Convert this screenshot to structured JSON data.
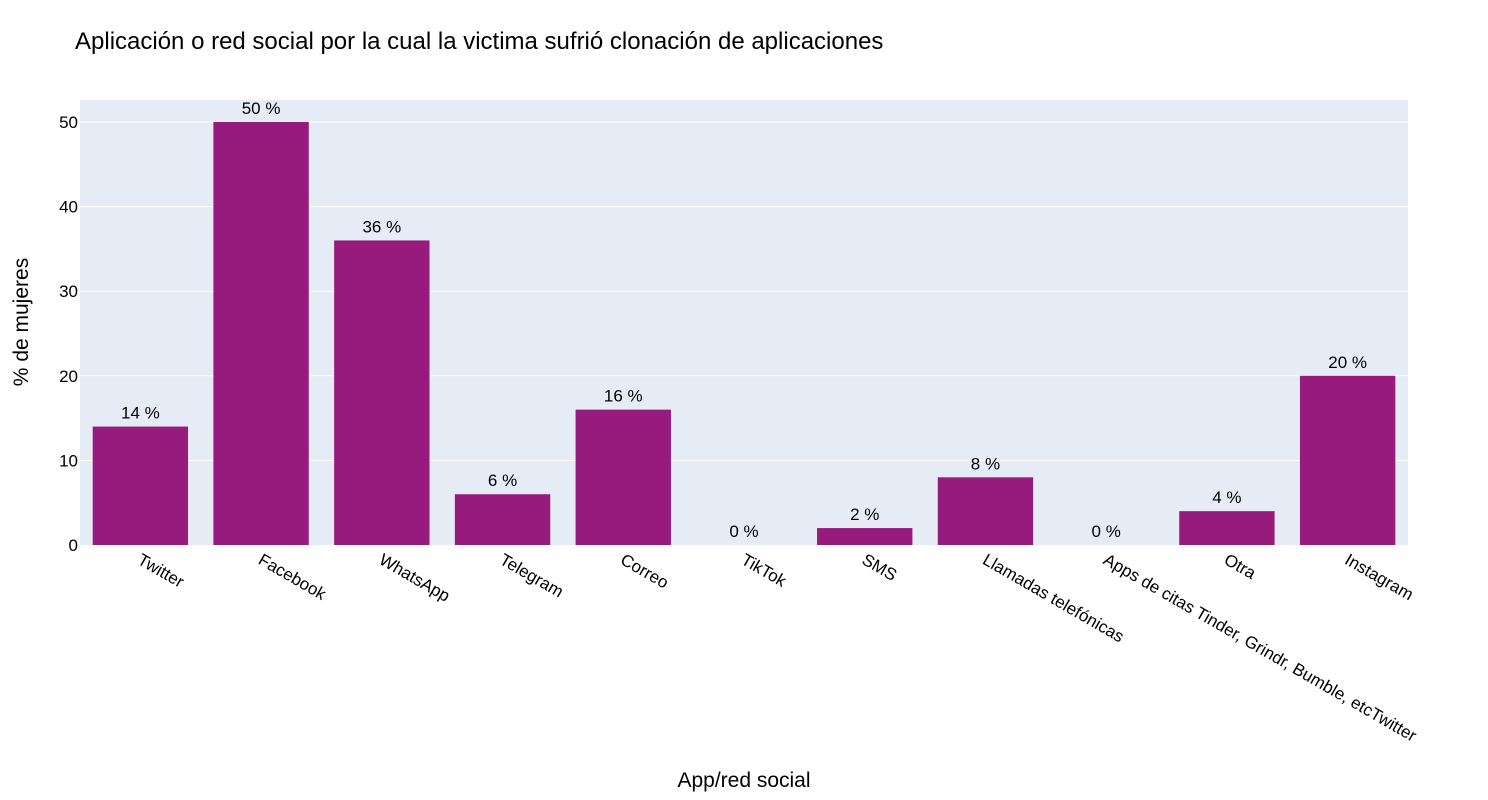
{
  "chart_data": {
    "type": "bar",
    "title": "Aplicación o red social por la cual la victima sufrió clonación de aplicaciones",
    "xlabel": "App/red social",
    "ylabel": "% de mujeres",
    "categories": [
      "Twitter",
      "Facebook",
      "WhatsApp",
      "Telegram",
      "Correo",
      "TikTok",
      "SMS",
      "Llamadas telefónicas",
      "Apps de citas Tinder, Grindr, Bumble, etcTwitter",
      "Otra",
      "Instagram"
    ],
    "values": [
      14,
      50,
      36,
      6,
      16,
      0,
      2,
      8,
      0,
      4,
      20
    ],
    "data_labels": [
      "14 %",
      "50 %",
      "36 %",
      "6 %",
      "16 %",
      "0 %",
      "2 %",
      "8 %",
      "0 %",
      "4 %",
      "20 %"
    ],
    "yticks": [
      0,
      10,
      20,
      30,
      40,
      50
    ],
    "ylim": [
      0,
      52.6
    ],
    "grid": true,
    "colors": {
      "bar": "#961b7c",
      "plot_bg": "#e5ecf6",
      "grid": "#ffffff"
    }
  }
}
